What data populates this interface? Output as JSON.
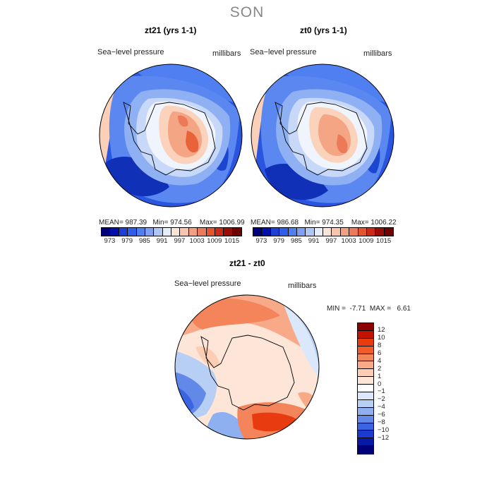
{
  "title": "SON",
  "panels": [
    {
      "title": "zt21 (yrs 1-1)",
      "variable": "Sea−level pressure",
      "units": "millibars",
      "mean_label": "MEAN=",
      "mean": "987.39",
      "min_label": "Min=",
      "min": "974.56",
      "max_label": "Max=",
      "max": "1006.99"
    },
    {
      "title": "zt0 (yrs 1-1)",
      "variable": "Sea−level pressure",
      "units": "millibars",
      "mean_label": "MEAN=",
      "mean": "986.68",
      "min_label": "Min=",
      "min": "974.35",
      "max_label": "Max=",
      "max": "1006.22"
    }
  ],
  "abs_colorbar": {
    "colors": [
      "#00007f",
      "#0010a8",
      "#1c3fd6",
      "#2f5fe8",
      "#4f7ff0",
      "#7fa0f2",
      "#b0c6f5",
      "#e4eefa",
      "#fae4d8",
      "#f8c4ac",
      "#f2a082",
      "#ec7a58",
      "#e4542f",
      "#cc2a16",
      "#9a0c05",
      "#6e0000"
    ],
    "ticks": [
      "973",
      "979",
      "985",
      "991",
      "997",
      "1003",
      "1009",
      "1015"
    ]
  },
  "diff": {
    "title": "zt21 - zt0",
    "variable": "Sea−level pressure",
    "units": "millibars",
    "min_label": "MIN =",
    "min": "-7.71",
    "max_label": "MAX =",
    "max": "6.61"
  },
  "diff_colorbar": {
    "colors": [
      "#8c0000",
      "#c01400",
      "#e83c10",
      "#f25c28",
      "#f4845a",
      "#f8aa88",
      "#fbcdb4",
      "#fde6d8",
      "#ffffff",
      "#dbe8fb",
      "#b8cff5",
      "#8fb0f0",
      "#6288e8",
      "#3a64e2",
      "#1a3ad0",
      "#0a18a8",
      "#00007a"
    ],
    "ticks": [
      "12",
      "10",
      "8",
      "6",
      "4",
      "2",
      "1",
      "0",
      "−1",
      "−2",
      "−4",
      "−6",
      "−8",
      "−10",
      "−12"
    ]
  }
}
